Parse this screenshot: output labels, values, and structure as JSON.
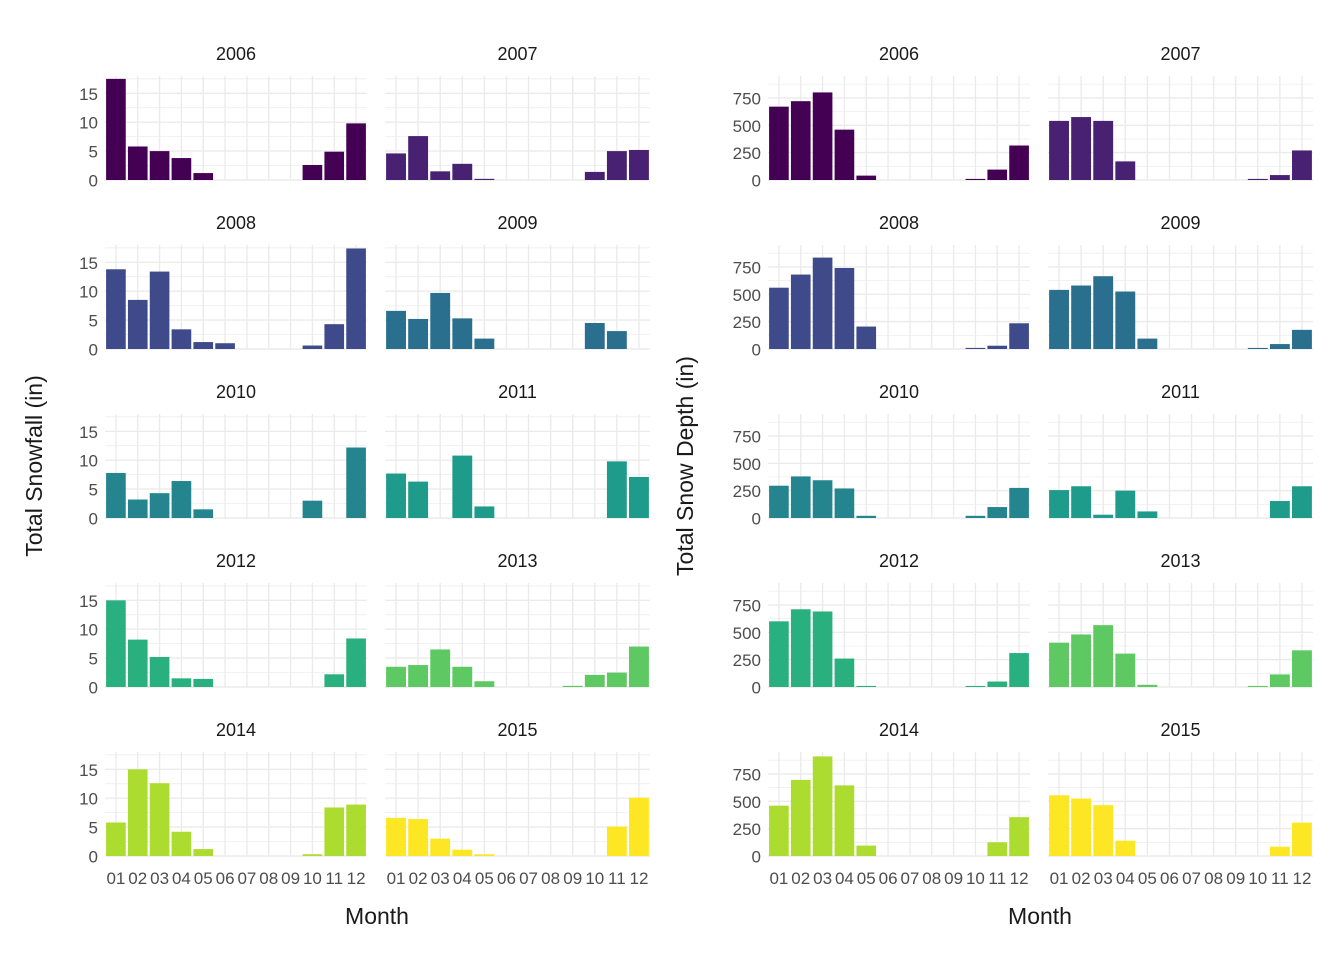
{
  "colors": {
    "grid": "#ebebeb",
    "text": "#4d4d4d",
    "title": "#1a1a1a",
    "years": {
      "2006": "#440154",
      "2007": "#482173",
      "2008": "#3e4a89",
      "2009": "#2a6f8e",
      "2010": "#25858e",
      "2011": "#1e9b8a",
      "2012": "#2ab07f",
      "2013": "#5ec962",
      "2014": "#addc30",
      "2015": "#fde725"
    }
  },
  "chart_data": [
    {
      "type": "bar",
      "facet_by": "year",
      "xlabel": "Month",
      "ylabel": "Total Snowfall (in)",
      "ylim": [
        0,
        18
      ],
      "yticks": [
        0,
        5,
        10,
        15
      ],
      "categories": [
        "01",
        "02",
        "03",
        "04",
        "05",
        "06",
        "07",
        "08",
        "09",
        "10",
        "11",
        "12"
      ],
      "facets": [
        {
          "title": "2006",
          "values": [
            17.5,
            5.8,
            5.0,
            3.8,
            1.2,
            0,
            0,
            0,
            0,
            2.6,
            4.9,
            9.8
          ]
        },
        {
          "title": "2007",
          "values": [
            4.6,
            7.6,
            1.5,
            2.8,
            0.2,
            0,
            0,
            0,
            0,
            1.4,
            5.0,
            5.2
          ]
        },
        {
          "title": "2008",
          "values": [
            13.8,
            8.5,
            13.4,
            3.4,
            1.2,
            1.0,
            0,
            0,
            0,
            0.6,
            4.3,
            17.4
          ]
        },
        {
          "title": "2009",
          "values": [
            6.6,
            5.2,
            9.7,
            5.3,
            1.8,
            0,
            0,
            0,
            0,
            4.5,
            3.1,
            0
          ]
        },
        {
          "title": "2010",
          "values": [
            7.8,
            3.2,
            4.3,
            6.4,
            1.5,
            0,
            0,
            0,
            0,
            3.0,
            0,
            12.2
          ]
        },
        {
          "title": "2011",
          "values": [
            7.7,
            6.3,
            0,
            10.8,
            2.0,
            0,
            0,
            0,
            0,
            0,
            9.8,
            7.1
          ]
        },
        {
          "title": "2012",
          "values": [
            15.0,
            8.2,
            5.2,
            1.5,
            1.4,
            0,
            0,
            0,
            0,
            0,
            2.2,
            8.4
          ]
        },
        {
          "title": "2013",
          "values": [
            3.5,
            3.8,
            6.5,
            3.5,
            1.0,
            0,
            0,
            0,
            0.2,
            2.1,
            2.5,
            7.0
          ]
        },
        {
          "title": "2014",
          "values": [
            5.8,
            15.0,
            12.6,
            4.2,
            1.2,
            0,
            0,
            0,
            0,
            0.3,
            8.4,
            8.9
          ]
        },
        {
          "title": "2015",
          "values": [
            6.6,
            6.4,
            3.0,
            1.1,
            0.3,
            0,
            0,
            0,
            0,
            0,
            5.1,
            10.1
          ]
        }
      ]
    },
    {
      "type": "bar",
      "facet_by": "year",
      "xlabel": "Month",
      "ylabel": "Total Snow Depth (in)",
      "ylim": [
        0,
        950
      ],
      "yticks": [
        0,
        250,
        500,
        750
      ],
      "categories": [
        "01",
        "02",
        "03",
        "04",
        "05",
        "06",
        "07",
        "08",
        "09",
        "10",
        "11",
        "12"
      ],
      "facets": [
        {
          "title": "2006",
          "values": [
            670,
            720,
            800,
            460,
            40,
            0,
            0,
            0,
            0,
            10,
            95,
            315
          ]
        },
        {
          "title": "2007",
          "values": [
            540,
            575,
            540,
            170,
            0,
            0,
            0,
            0,
            0,
            10,
            45,
            270
          ]
        },
        {
          "title": "2008",
          "values": [
            560,
            680,
            835,
            740,
            205,
            0,
            0,
            0,
            0,
            10,
            30,
            235
          ]
        },
        {
          "title": "2009",
          "values": [
            540,
            580,
            665,
            525,
            95,
            0,
            0,
            0,
            0,
            10,
            45,
            175
          ]
        },
        {
          "title": "2010",
          "values": [
            295,
            380,
            345,
            270,
            20,
            0,
            0,
            0,
            0,
            20,
            100,
            275
          ]
        },
        {
          "title": "2011",
          "values": [
            255,
            290,
            30,
            250,
            60,
            0,
            0,
            0,
            0,
            0,
            155,
            290
          ]
        },
        {
          "title": "2012",
          "values": [
            600,
            710,
            690,
            260,
            10,
            0,
            0,
            0,
            0,
            10,
            50,
            310
          ]
        },
        {
          "title": "2013",
          "values": [
            405,
            480,
            565,
            305,
            20,
            0,
            0,
            0,
            0,
            10,
            115,
            335
          ]
        },
        {
          "title": "2014",
          "values": [
            460,
            695,
            910,
            645,
            95,
            0,
            0,
            0,
            0,
            0,
            125,
            355
          ]
        },
        {
          "title": "2015",
          "values": [
            555,
            525,
            465,
            140,
            0,
            0,
            0,
            0,
            0,
            0,
            85,
            305
          ]
        }
      ]
    }
  ]
}
